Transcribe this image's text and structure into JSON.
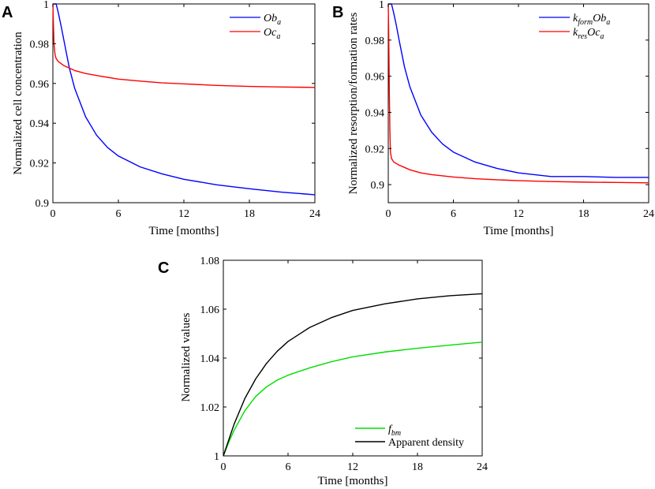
{
  "chart_data": [
    {
      "panel": "A",
      "type": "line",
      "xlabel": "Time [months]",
      "ylabel": "Normalized cell concentration",
      "xlim": [
        0,
        24
      ],
      "ylim": [
        0.9,
        1.0
      ],
      "xticks": [
        "0",
        "6",
        "12",
        "18",
        "24"
      ],
      "yticks": [
        "0.9",
        "0.92",
        "0.94",
        "0.96",
        "0.98",
        "1"
      ],
      "legend_position": "top-right",
      "series": [
        {
          "name": "Ob_a",
          "legend_main": "Ob",
          "legend_sub": "a",
          "color": "#0000ff",
          "x": [
            0,
            0.2,
            0.3,
            0.5,
            0.75,
            1,
            1.5,
            2,
            3,
            4,
            5,
            6,
            8,
            10,
            12,
            15,
            18,
            21,
            24
          ],
          "y": [
            1.0,
            1.0,
            1.0,
            0.9955,
            0.989,
            0.982,
            0.968,
            0.9575,
            0.9432,
            0.934,
            0.9278,
            0.9235,
            0.918,
            0.9145,
            0.9118,
            0.909,
            0.907,
            0.9053,
            0.904
          ]
        },
        {
          "name": "Oc_a",
          "legend_main": "Oc",
          "legend_sub": "a",
          "color": "#ff0000",
          "x": [
            0,
            0.05,
            0.1,
            0.2,
            0.3,
            0.5,
            1,
            2,
            3,
            4,
            6,
            8,
            10,
            12,
            15,
            18,
            21,
            24
          ],
          "y": [
            1.0,
            0.99,
            0.98,
            0.9745,
            0.9725,
            0.971,
            0.969,
            0.9665,
            0.965,
            0.964,
            0.9622,
            0.9612,
            0.9603,
            0.9598,
            0.959,
            0.9585,
            0.9582,
            0.958
          ]
        }
      ]
    },
    {
      "panel": "B",
      "type": "line",
      "xlabel": "Time [months]",
      "ylabel": "Normalized resorption/formation rates",
      "xlim": [
        0,
        24
      ],
      "ylim": [
        0.89,
        1.0
      ],
      "xticks": [
        "0",
        "6",
        "12",
        "18",
        "24"
      ],
      "yticks": [
        "0.9",
        "0.92",
        "0.94",
        "0.96",
        "0.98",
        "1"
      ],
      "legend_position": "top-right",
      "series": [
        {
          "name": "k_form Ob_a",
          "legend_k": "k",
          "legend_ksub": "form",
          "legend_main": "Ob",
          "legend_sub": "a",
          "color": "#0000ff",
          "x": [
            0,
            0.2,
            0.3,
            0.5,
            0.75,
            1,
            1.5,
            2,
            3,
            4,
            5,
            6,
            8,
            10,
            12,
            15,
            18,
            21,
            24
          ],
          "y": [
            1.0,
            1.0,
            1.0,
            0.995,
            0.988,
            0.98,
            0.965,
            0.954,
            0.9385,
            0.929,
            0.9225,
            0.918,
            0.9125,
            0.909,
            0.9065,
            0.9045,
            0.9045,
            0.904,
            0.904
          ]
        },
        {
          "name": "k_res Oc_a",
          "legend_k": "k",
          "legend_ksub": "res",
          "legend_main": "Oc",
          "legend_sub": "a",
          "color": "#ff0000",
          "x": [
            0,
            0.05,
            0.1,
            0.15,
            0.2,
            0.3,
            0.5,
            1,
            2,
            3,
            4,
            6,
            8,
            10,
            12,
            15,
            18,
            21,
            24
          ],
          "y": [
            1.0,
            0.98,
            0.95,
            0.93,
            0.918,
            0.9145,
            0.9125,
            0.9108,
            0.9082,
            0.9065,
            0.9055,
            0.9042,
            0.9033,
            0.9027,
            0.9022,
            0.9017,
            0.9014,
            0.9012,
            0.901
          ]
        }
      ]
    },
    {
      "panel": "C",
      "type": "line",
      "xlabel": "Time [months]",
      "ylabel": "Normalized values",
      "xlim": [
        0,
        24
      ],
      "ylim": [
        1.0,
        1.08
      ],
      "xticks": [
        "0",
        "6",
        "12",
        "18",
        "24"
      ],
      "yticks": [
        "1",
        "1.02",
        "1.04",
        "1.06",
        "1.08"
      ],
      "legend_position": "bottom-right",
      "series": [
        {
          "name": "f_bm",
          "legend_main": "f",
          "legend_sub": "bm",
          "color": "#00dd00",
          "x": [
            0,
            0.5,
            1,
            2,
            3,
            4,
            5,
            6,
            8,
            10,
            12,
            15,
            18,
            21,
            24
          ],
          "y": [
            1.0,
            1.0055,
            1.0105,
            1.0185,
            1.0243,
            1.0282,
            1.031,
            1.033,
            1.036,
            1.0385,
            1.0405,
            1.0425,
            1.044,
            1.0453,
            1.0465
          ]
        },
        {
          "name": "Apparent density",
          "legend_main": "Apparent density",
          "legend_sub": "",
          "color": "#000000",
          "x": [
            0,
            0.5,
            1,
            2,
            3,
            4,
            5,
            6,
            8,
            10,
            12,
            15,
            18,
            21,
            24
          ],
          "y": [
            1.0,
            1.0065,
            1.013,
            1.0235,
            1.0315,
            1.0378,
            1.0428,
            1.0468,
            1.0525,
            1.0565,
            1.0595,
            1.0622,
            1.0642,
            1.0655,
            1.0663
          ]
        }
      ]
    }
  ]
}
